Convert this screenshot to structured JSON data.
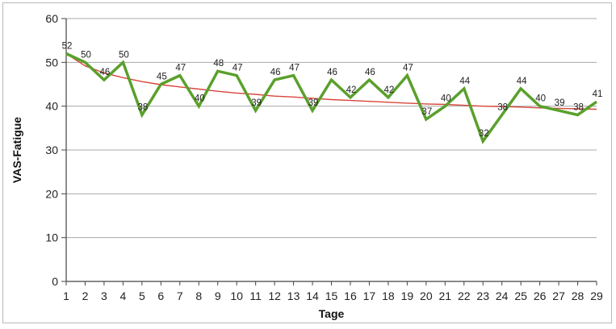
{
  "chart_data": {
    "type": "line",
    "title": "",
    "xlabel": "Tage",
    "ylabel": "VAS-Fatigue",
    "x": [
      1,
      2,
      3,
      4,
      5,
      6,
      7,
      8,
      9,
      10,
      11,
      12,
      13,
      14,
      15,
      16,
      17,
      18,
      19,
      20,
      21,
      22,
      23,
      24,
      25,
      26,
      27,
      28,
      29
    ],
    "ylim": [
      0,
      60
    ],
    "yticks": [
      0,
      10,
      20,
      30,
      40,
      50,
      60
    ],
    "grid": true,
    "legend": "none",
    "series": [
      {
        "color": "#5aa02c",
        "values": [
          52,
          50,
          46,
          50,
          38,
          45,
          47,
          40,
          48,
          47,
          39,
          46,
          47,
          39,
          46,
          42,
          46,
          42,
          47,
          37,
          40,
          44,
          32,
          38,
          44,
          40,
          39,
          38,
          41
        ],
        "data_labels": [
          "52",
          "50",
          "46",
          "50",
          "38",
          "45",
          "47",
          "40",
          "48",
          "47",
          "39",
          "46",
          "47",
          "39",
          "46",
          "42",
          "46",
          "42",
          "47",
          "37",
          "40",
          "44",
          "32",
          "38",
          "44",
          "40",
          "39",
          "38",
          "41"
        ]
      },
      {
        "color": "#d9453a",
        "values": [
          52.0,
          49.2,
          47.6,
          46.5,
          45.6,
          44.9,
          44.4,
          43.9,
          43.4,
          43.0,
          42.7,
          42.3,
          42.1,
          41.8,
          41.5,
          41.3,
          41.1,
          40.9,
          40.7,
          40.5,
          40.4,
          40.2,
          40.0,
          39.9,
          39.8,
          39.6,
          39.5,
          39.4,
          39.3
        ]
      }
    ]
  }
}
